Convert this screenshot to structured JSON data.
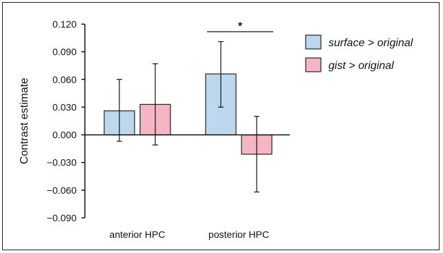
{
  "chart_data": {
    "type": "bar",
    "categories": [
      "anterior HPC",
      "posterior HPC"
    ],
    "series": [
      {
        "name": "surface > original",
        "color": "#bdd7ee",
        "values": [
          0.026,
          0.066
        ],
        "err_low": [
          -0.007,
          0.03
        ],
        "err_high": [
          0.06,
          0.101
        ]
      },
      {
        "name": "gist > original",
        "color": "#f4b6c5",
        "values": [
          0.033,
          -0.021
        ],
        "err_low": [
          -0.011,
          -0.062
        ],
        "err_high": [
          0.077,
          0.02
        ]
      }
    ],
    "ylabel": "Contrast estimate",
    "ylim": [
      -0.09,
      0.12
    ],
    "yticks": [
      "0.120",
      "0.090",
      "0.060",
      "0.030",
      "0.000",
      "−0.030",
      "−0.060",
      "−0.090"
    ],
    "ytick_values": [
      0.12,
      0.09,
      0.06,
      0.03,
      0.0,
      -0.03,
      -0.06,
      -0.09
    ],
    "grid": false,
    "legend_position": "top-right",
    "annotations": [
      {
        "text": "*",
        "type": "significance-bracket",
        "category": "posterior HPC"
      }
    ]
  }
}
